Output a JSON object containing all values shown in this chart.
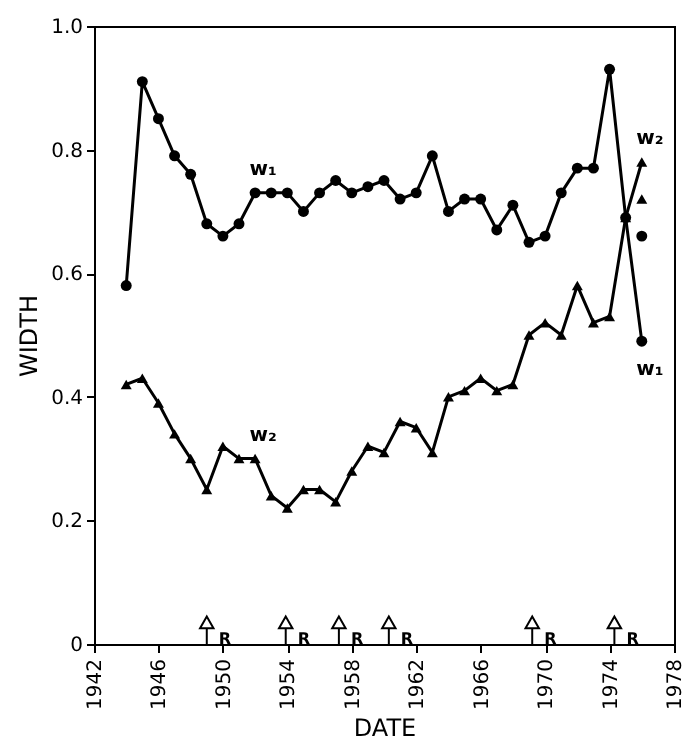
{
  "chart_data": {
    "type": "line",
    "xlabel": "DATE",
    "ylabel": "WIDTH",
    "xlim": [
      1942,
      1978
    ],
    "xticks": [
      1942,
      1946,
      1950,
      1954,
      1958,
      1962,
      1966,
      1970,
      1974,
      1978
    ],
    "ylim": [
      0,
      1.0
    ],
    "yticks": [
      {
        "value": 0,
        "label": "0"
      },
      0.2,
      0.4,
      0.6,
      0.8,
      {
        "value": 1.0,
        "label": "1.0"
      }
    ],
    "grid": false,
    "series": [
      {
        "name": "w₁",
        "marker": "circle",
        "color": "#000000",
        "x": [
          1944,
          1945,
          1946,
          1947,
          1948,
          1949,
          1950,
          1951,
          1952,
          1953,
          1954,
          1955,
          1956,
          1957,
          1958,
          1959,
          1960,
          1961,
          1962,
          1963,
          1964,
          1965,
          1966,
          1967,
          1968,
          1969,
          1970,
          1971,
          1972,
          1973,
          1974,
          1975,
          1976
        ],
        "values": [
          0.58,
          0.91,
          0.85,
          0.79,
          0.76,
          0.68,
          0.66,
          0.68,
          0.73,
          0.73,
          0.73,
          0.7,
          0.73,
          0.75,
          0.73,
          0.74,
          0.75,
          0.72,
          0.73,
          0.79,
          0.7,
          0.72,
          0.72,
          0.67,
          0.71,
          0.65,
          0.66,
          0.73,
          0.77,
          0.77,
          0.93,
          0.69,
          0.49
        ]
      },
      {
        "name": "w₂",
        "marker": "triangle",
        "color": "#000000",
        "x": [
          1944,
          1945,
          1946,
          1947,
          1948,
          1949,
          1950,
          1951,
          1952,
          1953,
          1954,
          1955,
          1956,
          1957,
          1958,
          1959,
          1960,
          1961,
          1962,
          1963,
          1964,
          1965,
          1966,
          1967,
          1968,
          1969,
          1970,
          1971,
          1972,
          1973,
          1974,
          1975,
          1976
        ],
        "values": [
          0.42,
          0.43,
          0.39,
          0.34,
          0.3,
          0.25,
          0.32,
          0.3,
          0.3,
          0.24,
          0.22,
          0.25,
          0.25,
          0.23,
          0.28,
          0.32,
          0.31,
          0.36,
          0.35,
          0.31,
          0.4,
          0.41,
          0.43,
          0.41,
          0.42,
          0.5,
          0.52,
          0.5,
          0.58,
          0.52,
          0.53,
          0.69,
          0.78
        ]
      },
      {
        "type": "scatter",
        "marker": "circle",
        "color": "#000000",
        "x": [
          1976
        ],
        "values": [
          0.66
        ]
      },
      {
        "type": "scatter",
        "marker": "triangle",
        "color": "#000000",
        "x": [
          1976
        ],
        "values": [
          0.72
        ]
      },
      {
        "type": "lollipop",
        "marker": "triangle",
        "color": "#000000",
        "x": [
          1949.0,
          1953.9,
          1957.2,
          1960.3,
          1969.2,
          1974.3
        ],
        "values": [
          0.035,
          0.035,
          0.035,
          0.035,
          0.035,
          0.035
        ],
        "value_labels": [
          "R",
          "R",
          "R",
          "R",
          "R",
          "R"
        ]
      }
    ]
  }
}
